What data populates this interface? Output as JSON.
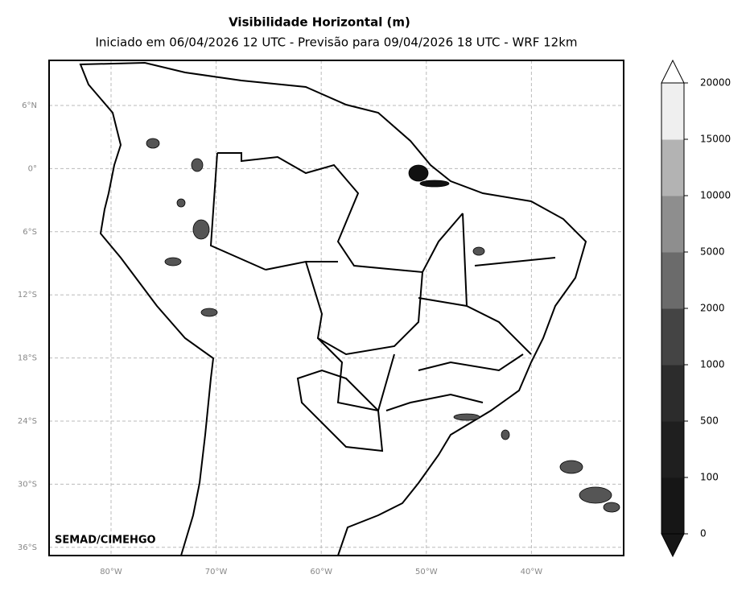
{
  "title": "Visibilidade Horizontal (m)",
  "subtitle": "Iniciado em 06/04/2026 12 UTC - Previsão para 09/04/2026 18 UTC - WRF 12km",
  "credit": "SEMAD/CIMEHGO",
  "lat_ticks": [
    "6°N",
    "0°",
    "6°S",
    "12°S",
    "18°S",
    "24°S",
    "30°S",
    "36°S"
  ],
  "lon_ticks": [
    "80°W",
    "70°W",
    "60°W",
    "50°W",
    "40°W"
  ],
  "colorbar": {
    "ticks": [
      0,
      100,
      500,
      1000,
      2000,
      5000,
      10000,
      15000,
      20000
    ],
    "colors": [
      "#161616",
      "#1f1f1f",
      "#2c2c2c",
      "#444444",
      "#6b6b6b",
      "#8e8e8e",
      "#b3b3b3",
      "#efefef"
    ]
  }
}
